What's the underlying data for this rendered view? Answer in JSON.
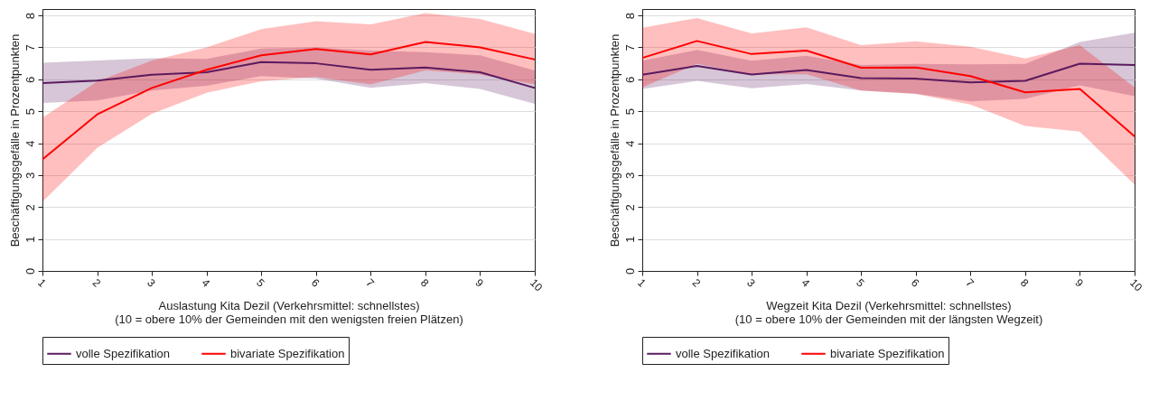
{
  "chart_data": [
    {
      "type": "line",
      "xlabel": "Auslastung Kita Dezil (Verkehrsmittel: schnellstes)\n(10 = obere 10% der Gemeinden mit den wenigsten freien Plätzen)",
      "ylabel": "Beschäftigungsgefälle in Prozentpunkten",
      "x": [
        1,
        2,
        3,
        4,
        5,
        6,
        7,
        8,
        9,
        10
      ],
      "xlim": [
        1,
        10
      ],
      "xticks": [
        1,
        2,
        3,
        4,
        5,
        6,
        7,
        8,
        9,
        10
      ],
      "ylim": [
        0,
        8.2
      ],
      "yticks": [
        0,
        1,
        2,
        3,
        4,
        5,
        6,
        7,
        8
      ],
      "grid": "y",
      "legend": "bottom",
      "series": [
        {
          "name": "volle Spezifikation",
          "color": "#5b1a5e",
          "values": [
            5.88,
            5.96,
            6.14,
            6.22,
            6.54,
            6.5,
            6.3,
            6.37,
            6.22,
            5.73
          ],
          "lower": [
            5.26,
            5.34,
            5.65,
            5.8,
            6.1,
            6.02,
            5.73,
            5.88,
            5.7,
            5.23
          ],
          "upper": [
            6.52,
            6.59,
            6.66,
            6.64,
            6.96,
            7.0,
            6.9,
            6.85,
            6.75,
            6.28
          ]
        },
        {
          "name": "bivariate Spezifikation",
          "color": "#ff0000",
          "values": [
            3.49,
            4.9,
            5.73,
            6.3,
            6.75,
            6.95,
            6.78,
            7.17,
            7.0,
            6.62
          ],
          "lower": [
            2.16,
            3.85,
            4.92,
            5.58,
            5.94,
            6.07,
            5.84,
            6.28,
            6.15,
            5.84
          ],
          "upper": [
            4.8,
            5.93,
            6.59,
            7.0,
            7.57,
            7.82,
            7.72,
            8.07,
            7.89,
            7.42
          ]
        }
      ]
    },
    {
      "type": "line",
      "xlabel": "Wegzeit Kita Dezil (Verkehrsmittel: schnellstes)\n(10 = obere 10% der Gemeinden mit der längsten Wegzeit)",
      "ylabel": "Beschäftigungsgefälle in Prozentpunkten",
      "x": [
        1,
        2,
        3,
        4,
        5,
        6,
        7,
        8,
        9,
        10
      ],
      "xlim": [
        1,
        10
      ],
      "xticks": [
        1,
        2,
        3,
        4,
        5,
        6,
        7,
        8,
        9,
        10
      ],
      "ylim": [
        0,
        8.2
      ],
      "yticks": [
        0,
        1,
        2,
        3,
        4,
        5,
        6,
        7,
        8
      ],
      "grid": "y",
      "legend": "bottom",
      "series": [
        {
          "name": "volle Spezifikation",
          "color": "#5b1a5e",
          "values": [
            6.14,
            6.42,
            6.15,
            6.29,
            6.04,
            6.02,
            5.9,
            5.95,
            6.49,
            6.45
          ],
          "lower": [
            5.7,
            5.95,
            5.72,
            5.85,
            5.65,
            5.55,
            5.31,
            5.39,
            5.81,
            5.47
          ],
          "upper": [
            6.58,
            6.92,
            6.58,
            6.74,
            6.45,
            6.48,
            6.47,
            6.48,
            7.17,
            7.46
          ]
        },
        {
          "name": "bivariate Spezifikation",
          "color": "#ff0000",
          "values": [
            6.67,
            7.2,
            6.79,
            6.9,
            6.36,
            6.37,
            6.1,
            5.59,
            5.7,
            4.21
          ],
          "lower": [
            5.75,
            6.48,
            6.16,
            6.16,
            5.65,
            5.54,
            5.21,
            4.54,
            4.36,
            2.7
          ],
          "upper": [
            7.61,
            7.92,
            7.44,
            7.63,
            7.07,
            7.19,
            7.02,
            6.65,
            7.07,
            5.75
          ]
        }
      ]
    }
  ]
}
